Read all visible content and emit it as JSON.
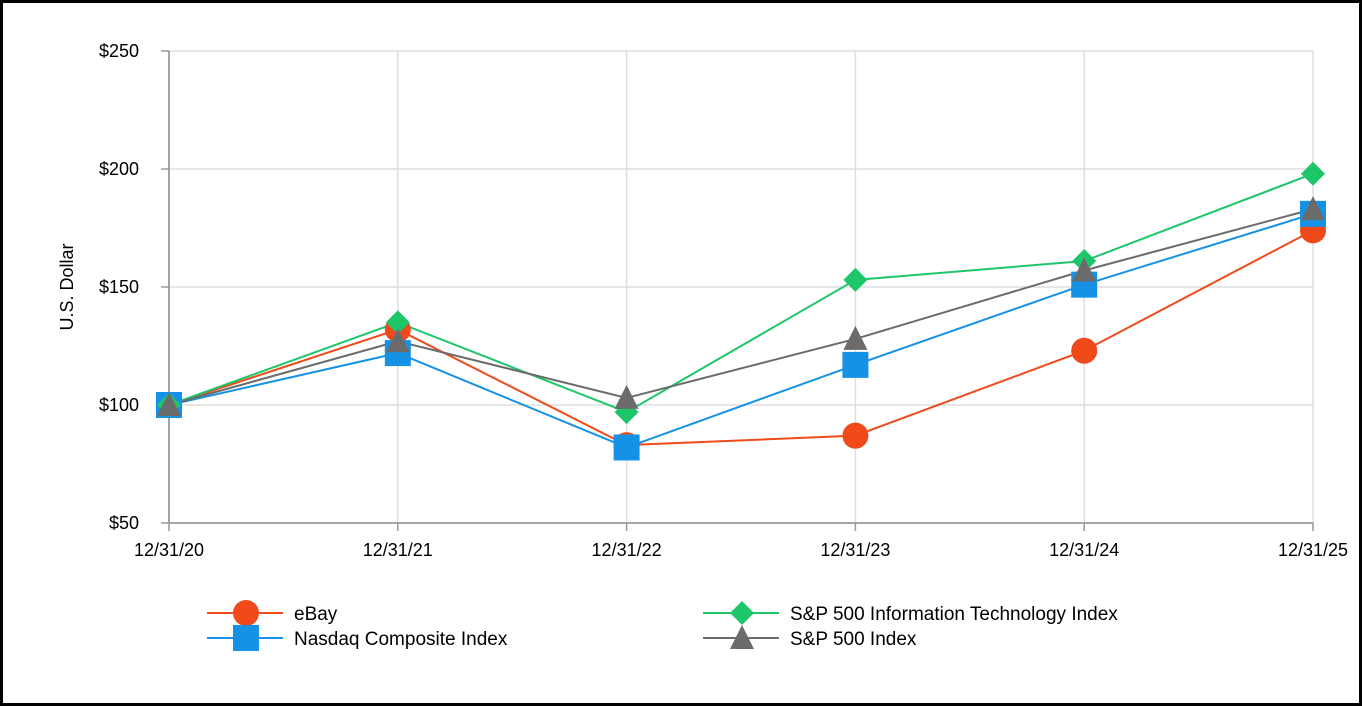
{
  "chart_data": {
    "type": "line",
    "title": "",
    "xlabel": "",
    "ylabel": "U.S. Dollar",
    "categories": [
      "12/31/20",
      "12/31/21",
      "12/31/22",
      "12/31/23",
      "12/31/24",
      "12/31/25"
    ],
    "y_ticks": [
      "$50",
      "$100",
      "$150",
      "$200",
      "$250"
    ],
    "y_tick_values": [
      50,
      100,
      150,
      200,
      250
    ],
    "ylim": [
      50,
      250
    ],
    "grid": true,
    "legend_position": "bottom",
    "series": [
      {
        "name": "eBay",
        "color": "#f04a1a",
        "marker": "circle",
        "values": [
          100,
          132,
          83,
          87,
          123,
          174
        ]
      },
      {
        "name": "S&P 500 Information Technology Index",
        "color": "#1ec66a",
        "marker": "diamond",
        "values": [
          100,
          135,
          97,
          153,
          161,
          198
        ]
      },
      {
        "name": "Nasdaq Composite Index",
        "color": "#1592e6",
        "marker": "square",
        "values": [
          100,
          122,
          82,
          117,
          151,
          181
        ]
      },
      {
        "name": "S&P 500 Index",
        "color": "#6b6b6b",
        "marker": "triangle",
        "values": [
          100,
          127,
          103,
          128,
          157,
          183
        ]
      }
    ]
  }
}
